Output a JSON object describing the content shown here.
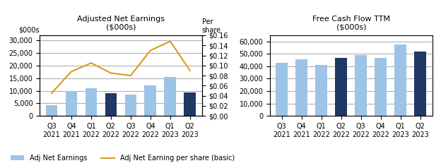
{
  "chart_data": [
    {
      "type": "bar",
      "title": "Adjusted Net Earnings\n($000s)",
      "y_label": "$000s",
      "y2_label": "Per\nshare",
      "categories": [
        "Q3\n2021",
        "Q4\n2021",
        "Q1\n2022",
        "Q2\n2022",
        "Q3\n2022",
        "Q4\n2022",
        "Q1\n2023",
        "Q2\n2023"
      ],
      "series": [
        {
          "name": "Adj Net Earnings",
          "type": "bar",
          "colors": [
            "#9dc3e6",
            "#9dc3e6",
            "#9dc3e6",
            "#1f3864",
            "#9dc3e6",
            "#9dc3e6",
            "#9dc3e6",
            "#1f3864"
          ],
          "values": [
            4200,
            9800,
            11000,
            9000,
            8500,
            12200,
            15500,
            9200
          ]
        },
        {
          "name": "Adj Net Earning per share (basic)",
          "type": "line",
          "axis": "y2",
          "color": "#d4a017",
          "values": [
            0.045,
            0.088,
            0.105,
            0.085,
            0.08,
            0.13,
            0.148,
            0.09
          ]
        }
      ],
      "ylim": [
        0,
        32000
      ],
      "yticks": [
        0,
        {
          "value": 5000,
          "label": "5,000"
        },
        {
          "value": 10000,
          "label": "10,000"
        },
        {
          "value": 15000,
          "label": "15,000"
        },
        {
          "value": 20000,
          "label": "20,000"
        },
        {
          "value": 25000,
          "label": "25,000"
        },
        {
          "value": 30000,
          "label": "30,000"
        }
      ],
      "y2lim": [
        0,
        0.16
      ],
      "y2ticks": [
        {
          "value": 0,
          "label": "$0.00"
        },
        {
          "value": 0.02,
          "label": "$0.02"
        },
        {
          "value": 0.04,
          "label": "$0.04"
        },
        {
          "value": 0.06,
          "label": "$0.06"
        },
        {
          "value": 0.08,
          "label": "$0.08"
        },
        {
          "value": 0.1,
          "label": "$0.10"
        },
        {
          "value": 0.12,
          "label": "$0.12"
        },
        {
          "value": 0.14,
          "label": "$0.14"
        },
        {
          "value": 0.16,
          "label": "$0.16"
        }
      ],
      "grid": true,
      "legend": "lower left"
    },
    {
      "type": "bar",
      "title": "Free Cash Flow TTM\n($000s)",
      "categories": [
        "Q3\n2021",
        "Q4\n2021",
        "Q1\n2022",
        "Q2\n2022",
        "Q3\n2022",
        "Q4\n2022",
        "Q1\n2023",
        "Q2\n2023"
      ],
      "series": [
        {
          "type": "bar",
          "colors": [
            "#9dc3e6",
            "#9dc3e6",
            "#9dc3e6",
            "#1f3864",
            "#9dc3e6",
            "#9dc3e6",
            "#9dc3e6",
            "#1f3864"
          ],
          "values": [
            43000,
            45500,
            41000,
            46500,
            49000,
            46500,
            57500,
            52000
          ]
        }
      ],
      "ylim": [
        0,
        65000
      ],
      "yticks": [
        0,
        {
          "value": 10000,
          "label": "10,000"
        },
        {
          "value": 20000,
          "label": "20,000"
        },
        {
          "value": 30000,
          "label": "30,000"
        },
        {
          "value": 40000,
          "label": "40,000"
        },
        {
          "value": 50000,
          "label": "50,000"
        },
        {
          "value": 60000,
          "label": "60,000"
        }
      ],
      "grid": true
    }
  ]
}
